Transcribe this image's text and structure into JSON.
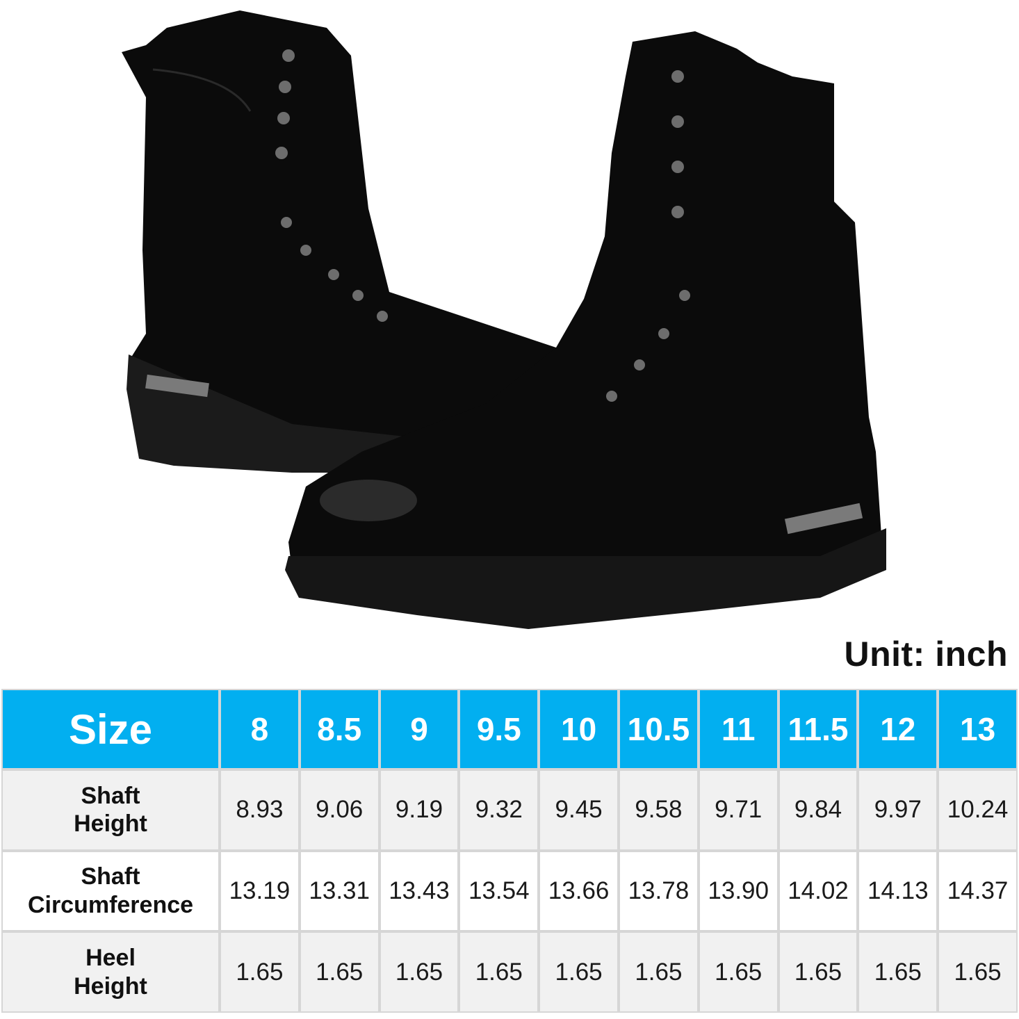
{
  "unit_label": "Unit: inch",
  "colors": {
    "header": "#02aff0",
    "row_alt": "#f1f1f1",
    "grid": "#d6d6d6",
    "boot": "#0b0b0b"
  },
  "image": {
    "subject": "pair of black lace-up leather combat boots with metal hooks and lug soles"
  },
  "table": {
    "header": {
      "label": "Size",
      "sizes": [
        "8",
        "8.5",
        "9",
        "9.5",
        "10",
        "10.5",
        "11",
        "11.5",
        "12",
        "13"
      ]
    },
    "rows": [
      {
        "label_line1": "Shaft",
        "label_line2": "Height",
        "values": [
          "8.93",
          "9.06",
          "9.19",
          "9.32",
          "9.45",
          "9.58",
          "9.71",
          "9.84",
          "9.97",
          "10.24"
        ]
      },
      {
        "label_line1": "Shaft",
        "label_line2": "Circumference",
        "values": [
          "13.19",
          "13.31",
          "13.43",
          "13.54",
          "13.66",
          "13.78",
          "13.90",
          "14.02",
          "14.13",
          "14.37"
        ]
      },
      {
        "label_line1": "Heel",
        "label_line2": "Height",
        "values": [
          "1.65",
          "1.65",
          "1.65",
          "1.65",
          "1.65",
          "1.65",
          "1.65",
          "1.65",
          "1.65",
          "1.65"
        ]
      }
    ]
  }
}
